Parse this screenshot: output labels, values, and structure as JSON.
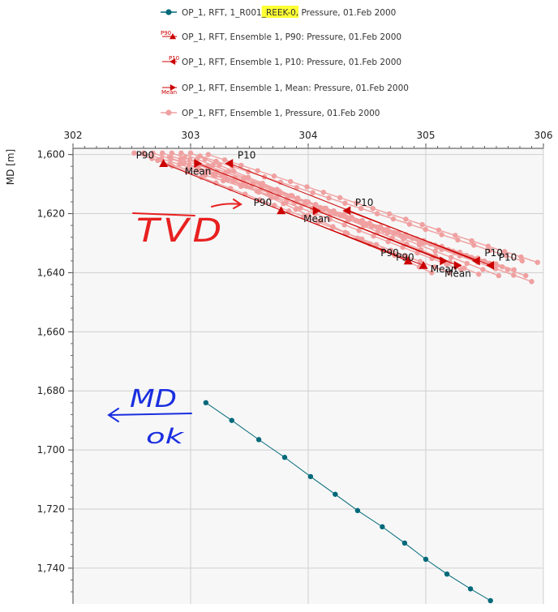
{
  "chart_data": {
    "type": "scatter",
    "title": "",
    "xlabel": "",
    "ylabel": "MD [m]",
    "xlim": [
      302,
      306
    ],
    "ylim": [
      1751,
      1599
    ],
    "y_inverted": true,
    "x_axis_position": "top",
    "x_ticks": [
      "302",
      "303",
      "304",
      "305",
      "306"
    ],
    "y_ticks": [
      "1,600",
      "1,620",
      "1,640",
      "1,660",
      "1,680",
      "1,700",
      "1,720",
      "1,740"
    ],
    "y_tick_values": [
      1600,
      1620,
      1640,
      1660,
      1680,
      1700,
      1720,
      1740
    ],
    "x_tick_values": [
      302,
      303,
      304,
      305,
      306
    ],
    "grid": true,
    "legend_position": "top",
    "legend": [
      {
        "text": "OP_1, RFT, 1_R001",
        "highlight": "_REEK-0,",
        "suffix": " Pressure, 01.Feb 2000",
        "symbol": "circle-line",
        "color": "#00697a"
      },
      {
        "text": "OP_1, RFT, Ensemble 1, P90: Pressure, 01.Feb 2000",
        "symbol": "triangle-up",
        "color": "#cc0000",
        "mini_label": "P90"
      },
      {
        "text": "OP_1, RFT, Ensemble 1, P10: Pressure, 01.Feb 2000",
        "symbol": "triangle-left",
        "color": "#cc0000",
        "mini_label": "P10"
      },
      {
        "text": "OP_1, RFT, Ensemble 1, Mean: Pressure, 01.Feb 2000",
        "symbol": "triangle-right",
        "color": "#cc0000",
        "mini_label": "Mean"
      },
      {
        "text": "OP_1, RFT, Ensemble 1, Pressure, 01.Feb 2000",
        "symbol": "circle-line",
        "color": "#f0a0a0"
      }
    ],
    "series": [
      {
        "name": "OP_1, RFT, 1_R001_REEK-0, Pressure, 01.Feb 2000",
        "color": "#00697a",
        "marker": "circle",
        "x": [
          303.13,
          303.35,
          303.58,
          303.8,
          304.02,
          304.23,
          304.42,
          304.63,
          304.82,
          305.0,
          305.18,
          305.38,
          305.55
        ],
        "y": [
          1684,
          1690,
          1696.5,
          1702.5,
          1709,
          1715,
          1720.5,
          1726,
          1731.5,
          1737,
          1742,
          1747,
          1751
        ]
      },
      {
        "name": "OP_1, RFT, Ensemble 1, P90: Pressure, 01.Feb 2000",
        "color": "#cc0000",
        "marker": "triangle-up",
        "x": [
          302.77,
          303.77,
          304.85,
          304.98
        ],
        "y": [
          1603,
          1619,
          1636,
          1637.5
        ],
        "labels": [
          "P90",
          "P90",
          "P90",
          "P90"
        ]
      },
      {
        "name": "OP_1, RFT, Ensemble 1, P10: Pressure, 01.Feb 2000",
        "color": "#cc0000",
        "marker": "triangle-left",
        "x": [
          303.33,
          304.33,
          305.43,
          305.55
        ],
        "y": [
          1603,
          1619,
          1636,
          1637.5
        ],
        "labels": [
          "P10",
          "P10",
          "P10",
          "P10"
        ]
      },
      {
        "name": "OP_1, RFT, Ensemble 1, Mean: Pressure, 01.Feb 2000",
        "color": "#cc0000",
        "marker": "triangle-right",
        "x": [
          303.06,
          304.07,
          305.15,
          305.27
        ],
        "y": [
          1603,
          1619,
          1636,
          1637.5
        ],
        "labels": [
          "Mean",
          "Mean",
          "Mean",
          "Mean"
        ]
      },
      {
        "name": "OP_1, RFT, Ensemble 1, Pressure, 01.Feb 2000",
        "color": "#f0a0a0",
        "marker": "circle",
        "realizations": [
          {
            "x": [
              302.52,
              305.55
            ],
            "y": [
              1599.5,
              1637
            ]
          },
          {
            "x": [
              302.6,
              305.65
            ],
            "y": [
              1599.5,
              1638
            ]
          },
          {
            "x": [
              302.68,
              305.75
            ],
            "y": [
              1599.5,
              1639
            ]
          },
          {
            "x": [
              302.76,
              305.85
            ],
            "y": [
              1599.5,
              1641
            ]
          },
          {
            "x": [
              302.84,
              305.9
            ],
            "y": [
              1599.5,
              1643
            ]
          },
          {
            "x": [
              302.92,
              305.62
            ],
            "y": [
              1599.5,
              1641
            ]
          },
          {
            "x": [
              303.0,
              305.45
            ],
            "y": [
              1599.5,
              1640.5
            ]
          },
          {
            "x": [
              302.82,
              305.3
            ],
            "y": [
              1601,
              1639
            ]
          },
          {
            "x": [
              302.95,
              305.05
            ],
            "y": [
              1601,
              1640
            ]
          },
          {
            "x": [
              303.08,
              305.82
            ],
            "y": [
              1600.5,
              1636
            ]
          },
          {
            "x": [
              302.72,
              305.2
            ],
            "y": [
              1602,
              1640
            ]
          },
          {
            "x": [
              303.15,
              305.95
            ],
            "y": [
              1600,
              1636.5
            ]
          }
        ]
      }
    ]
  },
  "annotations": {
    "tvd_text": "TVD",
    "md_text": "MD",
    "ok_text": "ok"
  }
}
